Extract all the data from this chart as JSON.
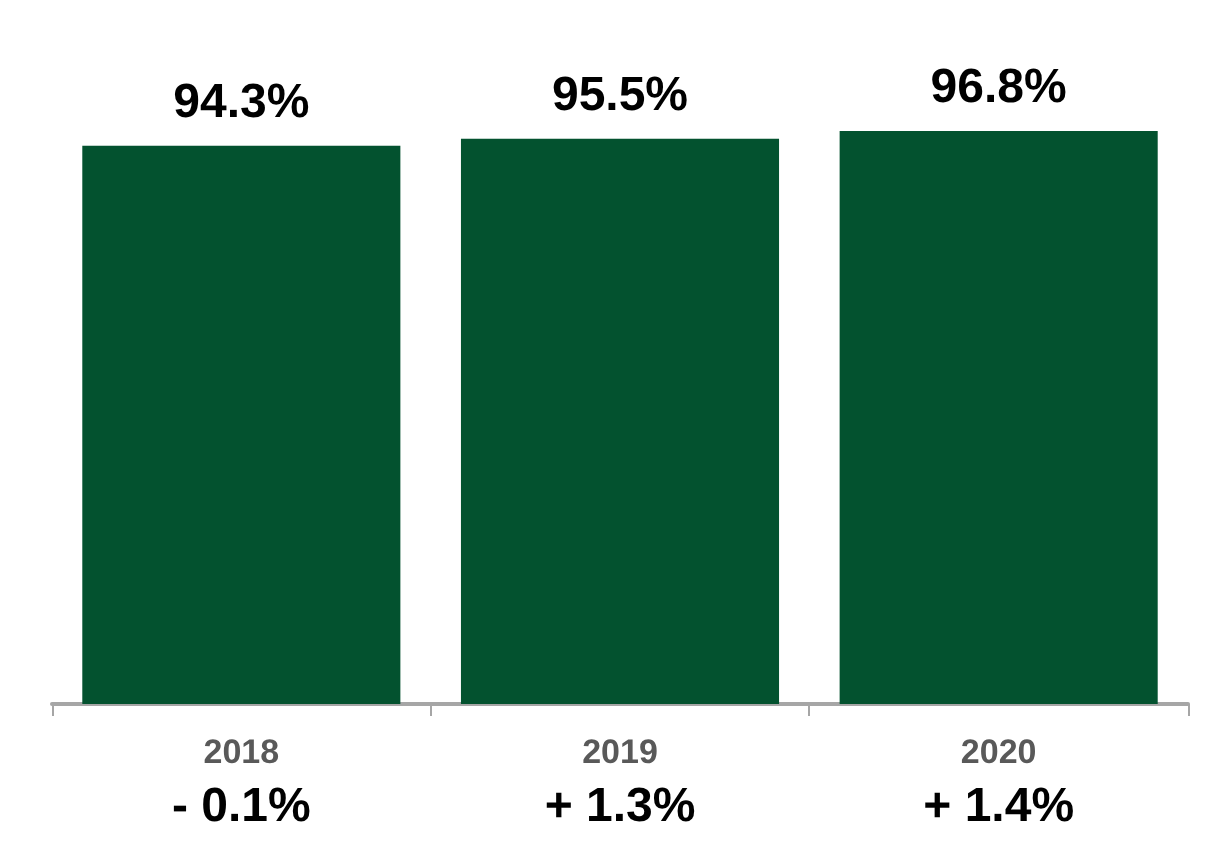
{
  "chart_data": {
    "type": "bar",
    "categories": [
      "2018",
      "2019",
      "2020"
    ],
    "values": [
      94.3,
      95.5,
      96.8
    ],
    "value_labels": [
      "94.3%",
      "95.5%",
      "96.8%"
    ],
    "color": "#03522f",
    "annotations": [
      "- 0.1%",
      "+ 1.3%",
      "+ 1.4%"
    ],
    "tick_labels": "x",
    "grid": false
  }
}
